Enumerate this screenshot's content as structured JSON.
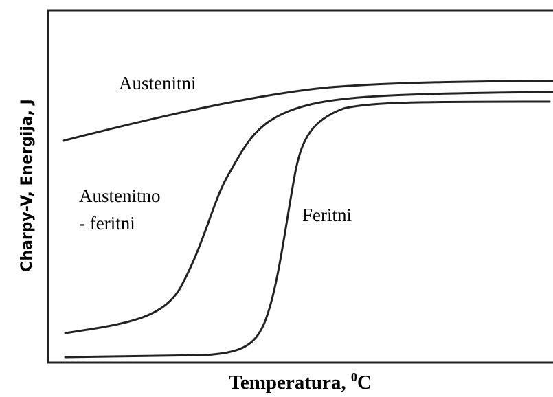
{
  "title": null,
  "y_axis_label": "Charpy-V, Energija, J",
  "x_axis_label": {
    "text": "Temperatura, ",
    "superscript": "0",
    "unit": "C"
  },
  "curve_labels": {
    "austenitni": "Austenitni",
    "austenitno_line1": "Austenitno",
    "austenitno_line2": "- feritni",
    "feritni": "Feritni"
  }
}
